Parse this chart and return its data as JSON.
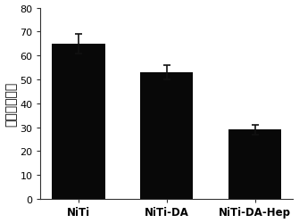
{
  "categories": [
    "NiTi",
    "NiTi-DA",
    "NiTi-DA-Hep"
  ],
  "values": [
    65.0,
    53.0,
    29.0
  ],
  "errors": [
    4.0,
    3.0,
    2.0
  ],
  "bar_color": "#080808",
  "bar_width": 0.6,
  "ylabel": "接触角（度）",
  "ylim": [
    0,
    80
  ],
  "yticks": [
    0,
    10,
    20,
    30,
    40,
    50,
    60,
    70,
    80
  ],
  "background_color": "#ffffff",
  "axes_bg_color": "#ffffff",
  "ylabel_fontsize": 10,
  "tick_fontsize": 8,
  "xlabel_fontsize": 8.5,
  "errorbar_capsize": 3,
  "errorbar_linewidth": 1.2,
  "errorbar_color": "#111111"
}
